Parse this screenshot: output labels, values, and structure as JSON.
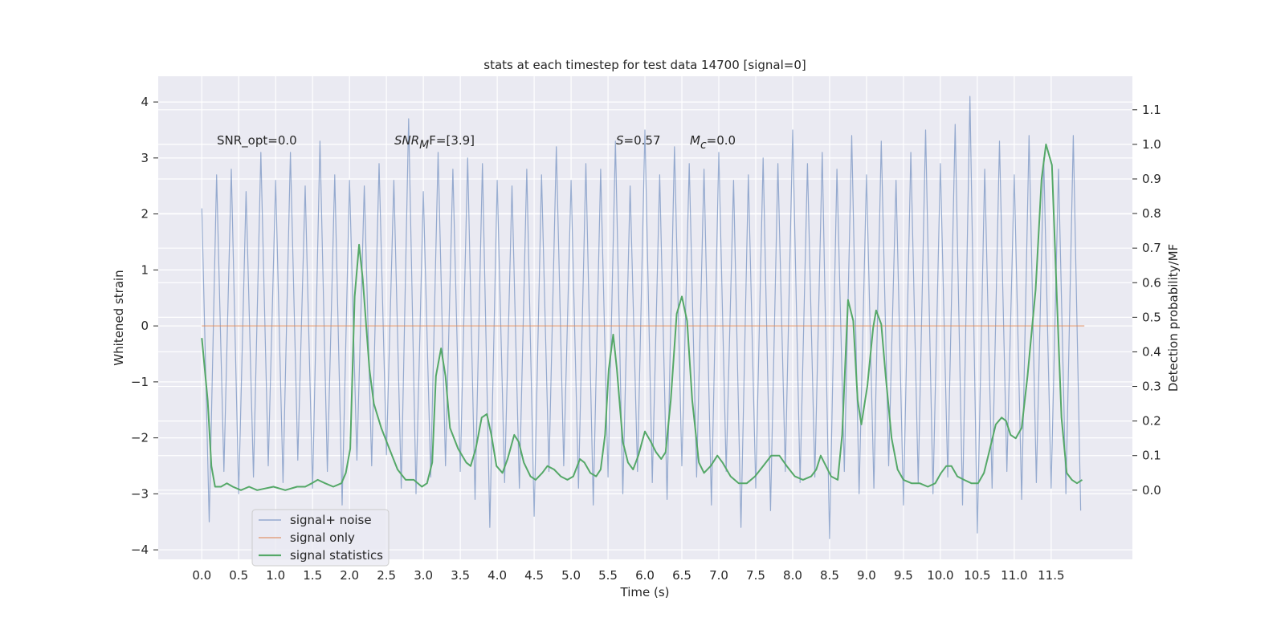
{
  "chart_data": {
    "type": "line",
    "title": "stats at each timestep for test data 14700 [signal=0]",
    "xlabel": "Time (s)",
    "ylabel": "Whitened strain",
    "y2label": "Detection probability/MF",
    "background": "#eaeaf2",
    "grid": true,
    "legend": "lower left",
    "xlim": [
      -0.59,
      12.6
    ],
    "ylim": [
      -4.17,
      4.46
    ],
    "y2lim": [
      -0.2,
      1.197
    ],
    "xticks": [
      {
        "value": 0,
        "label": "0.0"
      },
      0.5,
      {
        "value": 1,
        "label": "1.0"
      },
      1.5,
      {
        "value": 2,
        "label": "2.0"
      },
      2.5,
      {
        "value": 3,
        "label": "3.0"
      },
      3.5,
      {
        "value": 4,
        "label": "4.0"
      },
      4.5,
      {
        "value": 5,
        "label": "5.0"
      },
      5.5,
      {
        "value": 6,
        "label": "6.0"
      },
      6.5,
      {
        "value": 7,
        "label": "7.0"
      },
      7.5,
      {
        "value": 8,
        "label": "8.0"
      },
      8.5,
      {
        "value": 9,
        "label": "9.0"
      },
      9.5,
      {
        "value": 10,
        "label": "10.0"
      },
      10.5,
      {
        "value": 11,
        "label": "11.0"
      },
      11.5
    ],
    "yticks": [
      {
        "value": -4,
        "label": "−4"
      },
      {
        "value": -3,
        "label": "−3"
      },
      {
        "value": -2,
        "label": "−2"
      },
      {
        "value": -1,
        "label": "−1"
      },
      0,
      1,
      2,
      3,
      4
    ],
    "y2ticks": [
      {
        "value": 0,
        "label": "0.0"
      },
      0.1,
      0.2,
      0.3,
      0.4,
      0.5,
      0.6,
      0.7,
      0.8,
      0.9,
      {
        "value": 1,
        "label": "1.0"
      },
      1.1
    ],
    "annotations": [
      {
        "text": "SNR_opt=0.0"
      },
      {
        "math": "SNR",
        "sub": "M",
        "text": "F=[3.9]"
      },
      {
        "math": "S",
        "text": "=0.57"
      },
      {
        "math": "M",
        "sub": "c",
        "text": "=0.0"
      }
    ],
    "series": [
      {
        "name": "signal+ noise",
        "color": "#4c72b0",
        "x": [
          0.0,
          0.1,
          0.2,
          0.3,
          0.4,
          0.5,
          0.6,
          0.7,
          0.8,
          0.9,
          1.0,
          1.1,
          1.2,
          1.3,
          1.4,
          1.5,
          1.6,
          1.7,
          1.8,
          1.9,
          2.0,
          2.1,
          2.2,
          2.3,
          2.4,
          2.5,
          2.6,
          2.7,
          2.8,
          2.9,
          3.0,
          3.1,
          3.2,
          3.3,
          3.4,
          3.5,
          3.6,
          3.7,
          3.8,
          3.9,
          4.0,
          4.1,
          4.2,
          4.3,
          4.4,
          4.5,
          4.6,
          4.7,
          4.8,
          4.9,
          5.0,
          5.1,
          5.2,
          5.3,
          5.4,
          5.5,
          5.6,
          5.7,
          5.8,
          5.9,
          6.0,
          6.1,
          6.2,
          6.3,
          6.4,
          6.5,
          6.6,
          6.7,
          6.8,
          6.9,
          7.0,
          7.1,
          7.2,
          7.3,
          7.4,
          7.5,
          7.6,
          7.7,
          7.8,
          7.9,
          8.0,
          8.1,
          8.2,
          8.3,
          8.4,
          8.5,
          8.6,
          8.7,
          8.8,
          8.9,
          9.0,
          9.1,
          9.2,
          9.3,
          9.4,
          9.5,
          9.6,
          9.7,
          9.8,
          9.9,
          10.0,
          10.1,
          10.2,
          10.3,
          10.4,
          10.5,
          10.6,
          10.7,
          10.8,
          10.9,
          11.0,
          11.1,
          11.2,
          11.3,
          11.4,
          11.5,
          11.6,
          11.7,
          11.8,
          11.9
        ],
        "values": [
          2.1,
          -3.5,
          2.7,
          -2.6,
          2.8,
          -3.0,
          2.4,
          -2.7,
          3.1,
          -2.5,
          2.6,
          -2.8,
          3.1,
          -2.4,
          2.5,
          -2.9,
          3.3,
          -2.6,
          2.7,
          -3.2,
          2.6,
          -2.4,
          2.5,
          -2.5,
          2.9,
          -2.3,
          2.6,
          -2.9,
          3.7,
          -3.0,
          2.4,
          -2.7,
          3.1,
          -2.5,
          2.8,
          -2.6,
          3.0,
          -3.1,
          2.9,
          -3.6,
          2.6,
          -2.8,
          2.5,
          -2.9,
          2.8,
          -3.4,
          2.7,
          -2.6,
          3.2,
          -2.5,
          2.6,
          -2.9,
          2.9,
          -3.2,
          2.8,
          -2.7,
          3.3,
          -3.0,
          2.5,
          -2.6,
          3.5,
          -2.8,
          2.7,
          -3.1,
          3.2,
          -2.5,
          2.9,
          -2.7,
          2.8,
          -3.2,
          3.1,
          -2.6,
          2.6,
          -3.6,
          2.7,
          -2.9,
          3.0,
          -3.3,
          2.9,
          -2.6,
          3.5,
          -2.8,
          2.9,
          -2.7,
          3.1,
          -3.8,
          2.8,
          -2.6,
          3.4,
          -3.0,
          2.7,
          -2.9,
          3.3,
          -2.5,
          2.6,
          -3.2,
          3.1,
          -2.8,
          3.5,
          -3.0,
          2.9,
          -2.7,
          3.6,
          -3.2,
          4.1,
          -3.7,
          2.8,
          -2.9,
          3.3,
          -2.6,
          2.7,
          -3.1,
          3.4,
          -2.8,
          3.0,
          -2.9,
          2.8,
          -3.0,
          3.4,
          -3.3
        ]
      },
      {
        "name": "signal only",
        "color": "#dd8452",
        "x": [
          0.0,
          11.95
        ],
        "values": [
          0,
          0
        ]
      },
      {
        "name": "signal statistics",
        "color": "#55a868",
        "axis": "y2",
        "x": [
          0.0,
          0.08,
          0.13,
          0.18,
          0.26,
          0.34,
          0.42,
          0.53,
          0.64,
          0.75,
          0.97,
          1.13,
          1.29,
          1.4,
          1.49,
          1.57,
          1.67,
          1.78,
          1.89,
          1.95,
          2.01,
          2.07,
          2.13,
          2.18,
          2.27,
          2.33,
          2.43,
          2.54,
          2.65,
          2.76,
          2.87,
          2.98,
          3.05,
          3.12,
          3.17,
          3.24,
          3.3,
          3.36,
          3.47,
          3.58,
          3.64,
          3.71,
          3.79,
          3.86,
          3.92,
          3.99,
          4.07,
          4.14,
          4.23,
          4.29,
          4.36,
          4.45,
          4.52,
          4.61,
          4.68,
          4.77,
          4.86,
          4.95,
          5.03,
          5.12,
          5.18,
          5.26,
          5.34,
          5.4,
          5.46,
          5.51,
          5.57,
          5.62,
          5.7,
          5.77,
          5.84,
          5.91,
          6.0,
          6.08,
          6.15,
          6.22,
          6.28,
          6.35,
          6.43,
          6.5,
          6.57,
          6.64,
          6.73,
          6.8,
          6.89,
          6.98,
          7.05,
          7.16,
          7.27,
          7.38,
          7.49,
          7.6,
          7.71,
          7.82,
          7.92,
          8.03,
          8.14,
          8.25,
          8.32,
          8.38,
          8.45,
          8.52,
          8.61,
          8.67,
          8.75,
          8.82,
          8.88,
          8.93,
          9.01,
          9.09,
          9.13,
          9.2,
          9.26,
          9.34,
          9.42,
          9.5,
          9.61,
          9.72,
          9.83,
          9.93,
          10.01,
          10.08,
          10.15,
          10.23,
          10.32,
          10.42,
          10.51,
          10.59,
          10.66,
          10.75,
          10.83,
          10.89,
          10.95,
          11.02,
          11.1,
          11.18,
          11.29,
          11.37,
          11.43,
          11.51,
          11.58,
          11.64,
          11.71,
          11.78,
          11.85,
          11.92
        ],
        "values": [
          0.44,
          0.26,
          0.07,
          0.01,
          0.01,
          0.02,
          0.01,
          0.0,
          0.01,
          0.0,
          0.01,
          0.0,
          0.01,
          0.01,
          0.02,
          0.03,
          0.02,
          0.01,
          0.02,
          0.05,
          0.12,
          0.56,
          0.71,
          0.61,
          0.35,
          0.25,
          0.18,
          0.12,
          0.06,
          0.03,
          0.03,
          0.01,
          0.02,
          0.08,
          0.33,
          0.41,
          0.33,
          0.18,
          0.12,
          0.08,
          0.07,
          0.12,
          0.21,
          0.22,
          0.16,
          0.07,
          0.05,
          0.09,
          0.16,
          0.14,
          0.08,
          0.04,
          0.03,
          0.05,
          0.07,
          0.06,
          0.04,
          0.03,
          0.04,
          0.09,
          0.08,
          0.05,
          0.04,
          0.06,
          0.16,
          0.35,
          0.45,
          0.35,
          0.14,
          0.08,
          0.06,
          0.1,
          0.17,
          0.14,
          0.11,
          0.09,
          0.11,
          0.26,
          0.51,
          0.56,
          0.49,
          0.26,
          0.08,
          0.05,
          0.07,
          0.1,
          0.08,
          0.04,
          0.02,
          0.02,
          0.04,
          0.07,
          0.1,
          0.1,
          0.07,
          0.04,
          0.03,
          0.04,
          0.06,
          0.1,
          0.07,
          0.04,
          0.03,
          0.16,
          0.55,
          0.49,
          0.26,
          0.19,
          0.3,
          0.47,
          0.52,
          0.48,
          0.33,
          0.15,
          0.06,
          0.03,
          0.02,
          0.02,
          0.01,
          0.02,
          0.05,
          0.07,
          0.07,
          0.04,
          0.03,
          0.02,
          0.02,
          0.05,
          0.11,
          0.19,
          0.21,
          0.2,
          0.16,
          0.15,
          0.18,
          0.33,
          0.58,
          0.9,
          1.0,
          0.94,
          0.54,
          0.21,
          0.05,
          0.03,
          0.02,
          0.03
        ]
      }
    ]
  }
}
